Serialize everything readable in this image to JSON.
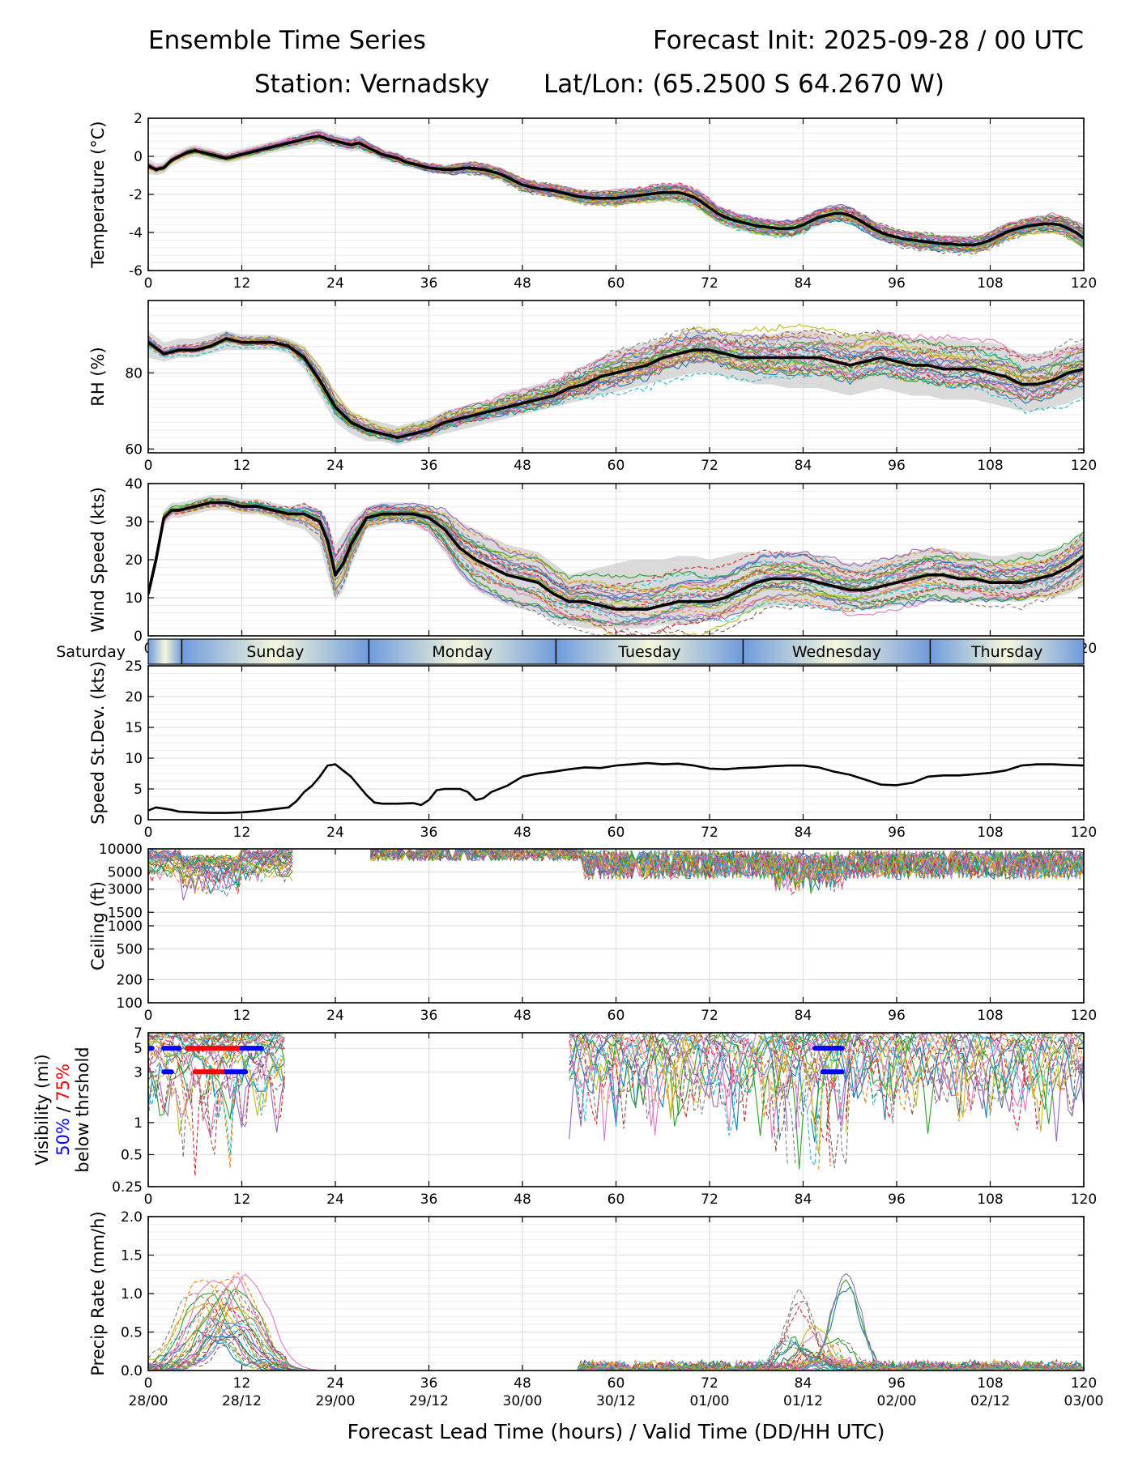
{
  "header": {
    "title_left": "Ensemble Time Series",
    "title_right": "Forecast Init: 2025-09-28 / 00 UTC",
    "station": "Station: Vernadsky",
    "latlon": "Lat/Lon: (65.2500 S 64.2670 W)"
  },
  "colors": {
    "mean": "#000000",
    "spread_fill": "#d3d3d3",
    "members": [
      "#1f77b4",
      "#ff7f0e",
      "#2ca02c",
      "#d62728",
      "#9467bd",
      "#8c564b",
      "#e377c2",
      "#7f7f7f",
      "#bcbd22",
      "#17becf"
    ],
    "day_band_light": "#f5f7dc",
    "day_band_dark": "#6f9bdc",
    "vis_50": "#0000ff",
    "vis_75": "#ff0000"
  },
  "chart_data": [
    {
      "type": "line",
      "id": "temperature",
      "ylabel": "Temperature (°C)",
      "ylim": [
        -6,
        2
      ],
      "yticks": [
        "2",
        "0",
        "-2",
        "-4",
        "-6"
      ],
      "ytick_values": [
        2,
        0,
        -2,
        -4,
        -6
      ],
      "x": [
        0,
        1,
        2,
        3,
        4,
        5,
        6,
        7,
        8,
        9,
        10,
        11,
        12,
        13,
        14,
        15,
        16,
        17,
        18,
        19,
        20,
        21,
        22,
        23,
        24,
        25,
        26,
        27,
        28,
        29,
        30,
        31,
        32,
        33,
        34,
        35,
        36,
        37,
        38,
        39,
        40,
        41,
        42,
        43,
        44,
        45,
        46,
        47,
        48,
        49,
        50,
        51,
        52,
        53,
        54,
        55,
        56,
        57,
        58,
        59,
        60,
        61,
        62,
        63,
        64,
        65,
        66,
        67,
        68,
        69,
        70,
        71,
        72,
        73,
        74,
        75,
        76,
        77,
        78,
        79,
        80,
        81,
        82,
        83,
        84,
        85,
        86,
        87,
        88,
        89,
        90,
        91,
        92,
        93,
        94,
        95,
        96,
        97,
        98,
        99,
        100,
        101,
        102,
        103,
        104,
        105,
        106,
        107,
        108,
        109,
        110,
        111,
        112,
        113,
        114,
        115,
        116,
        117,
        118,
        119,
        120
      ],
      "mean": [
        -0.5,
        -0.7,
        -0.6,
        -0.2,
        0.0,
        0.2,
        0.3,
        0.2,
        0.1,
        0.0,
        -0.1,
        0.0,
        0.1,
        0.2,
        0.3,
        0.4,
        0.5,
        0.6,
        0.7,
        0.8,
        0.9,
        1.0,
        1.05,
        0.9,
        0.8,
        0.7,
        0.6,
        0.7,
        0.5,
        0.3,
        0.1,
        0.0,
        -0.1,
        -0.3,
        -0.4,
        -0.5,
        -0.6,
        -0.65,
        -0.7,
        -0.7,
        -0.65,
        -0.6,
        -0.65,
        -0.7,
        -0.8,
        -0.9,
        -1.1,
        -1.3,
        -1.5,
        -1.6,
        -1.7,
        -1.75,
        -1.8,
        -1.9,
        -2.0,
        -2.1,
        -2.15,
        -2.2,
        -2.2,
        -2.2,
        -2.2,
        -2.15,
        -2.1,
        -2.05,
        -2.0,
        -1.95,
        -1.9,
        -1.9,
        -1.9,
        -2.0,
        -2.15,
        -2.4,
        -2.7,
        -3.0,
        -3.2,
        -3.35,
        -3.45,
        -3.55,
        -3.65,
        -3.7,
        -3.75,
        -3.8,
        -3.8,
        -3.75,
        -3.6,
        -3.4,
        -3.2,
        -3.1,
        -3.0,
        -3.0,
        -3.1,
        -3.3,
        -3.55,
        -3.8,
        -4.0,
        -4.15,
        -4.25,
        -4.35,
        -4.4,
        -4.45,
        -4.5,
        -4.55,
        -4.6,
        -4.6,
        -4.65,
        -4.65,
        -4.65,
        -4.55,
        -4.4,
        -4.2,
        -4.0,
        -3.85,
        -3.75,
        -3.65,
        -3.6,
        -3.55,
        -3.55,
        -3.6,
        -3.8,
        -4.0,
        -4.3
      ],
      "spread_lo": [
        -0.9,
        -1.0,
        -0.9,
        -0.5,
        -0.3,
        -0.1,
        0.0,
        -0.1,
        -0.2,
        -0.3,
        -0.35,
        -0.3,
        -0.2,
        -0.1,
        0.0,
        0.1,
        0.2,
        0.3,
        0.35,
        0.45,
        0.55,
        0.6,
        0.65,
        0.55,
        0.45,
        0.35,
        0.25,
        0.3,
        0.15,
        0.0,
        -0.2,
        -0.3,
        -0.4,
        -0.55,
        -0.65,
        -0.75,
        -0.85,
        -0.9,
        -0.95,
        -1.0,
        -0.95,
        -0.95,
        -1.0,
        -1.05,
        -1.15,
        -1.25,
        -1.45,
        -1.65,
        -1.85,
        -1.95,
        -2.05,
        -2.1,
        -2.15,
        -2.25,
        -2.35,
        -2.45,
        -2.5,
        -2.55,
        -2.6,
        -2.6,
        -2.6,
        -2.55,
        -2.5,
        -2.45,
        -2.4,
        -2.4,
        -2.35,
        -2.35,
        -2.4,
        -2.5,
        -2.65,
        -2.9,
        -3.2,
        -3.45,
        -3.65,
        -3.8,
        -3.9,
        -4.0,
        -4.1,
        -4.15,
        -4.2,
        -4.25,
        -4.25,
        -4.2,
        -4.05,
        -3.85,
        -3.65,
        -3.55,
        -3.45,
        -3.45,
        -3.55,
        -3.75,
        -4.0,
        -4.25,
        -4.45,
        -4.6,
        -4.7,
        -4.8,
        -4.85,
        -4.9,
        -4.95,
        -5.0,
        -5.05,
        -5.05,
        -5.1,
        -5.1,
        -5.1,
        -5.0,
        -4.85,
        -4.65,
        -4.45,
        -4.3,
        -4.2,
        -4.1,
        -4.05,
        -4.0,
        -4.05,
        -4.1,
        -4.35,
        -4.6,
        -4.9
      ],
      "spread_hi": [
        -0.1,
        -0.4,
        -0.3,
        0.1,
        0.3,
        0.5,
        0.6,
        0.5,
        0.4,
        0.3,
        0.15,
        0.3,
        0.4,
        0.5,
        0.6,
        0.7,
        0.8,
        0.9,
        1.05,
        1.15,
        1.25,
        1.4,
        1.45,
        1.25,
        1.15,
        1.05,
        0.95,
        1.1,
        0.85,
        0.6,
        0.4,
        0.3,
        0.2,
        0.0,
        -0.15,
        -0.25,
        -0.35,
        -0.4,
        -0.45,
        -0.4,
        -0.35,
        -0.25,
        -0.3,
        -0.35,
        -0.45,
        -0.55,
        -0.75,
        -0.95,
        -1.15,
        -1.25,
        -1.35,
        -1.4,
        -1.45,
        -1.55,
        -1.65,
        -1.75,
        -1.8,
        -1.85,
        -1.8,
        -1.8,
        -1.8,
        -1.75,
        -1.7,
        -1.65,
        -1.6,
        -1.5,
        -1.45,
        -1.45,
        -1.4,
        -1.5,
        -1.65,
        -1.9,
        -2.2,
        -2.55,
        -2.75,
        -2.9,
        -3.0,
        -3.1,
        -3.2,
        -3.25,
        -3.3,
        -3.35,
        -3.35,
        -3.3,
        -3.15,
        -2.95,
        -2.75,
        -2.65,
        -2.55,
        -2.55,
        -2.65,
        -2.85,
        -3.1,
        -3.35,
        -3.55,
        -3.7,
        -3.8,
        -3.9,
        -3.95,
        -4.0,
        -4.05,
        -4.1,
        -4.15,
        -4.15,
        -4.2,
        -4.2,
        -4.2,
        -4.1,
        -3.95,
        -3.75,
        -3.55,
        -3.4,
        -3.3,
        -3.2,
        -3.15,
        -3.1,
        -3.05,
        -3.1,
        -3.25,
        -3.4,
        -3.7
      ]
    },
    {
      "type": "line",
      "id": "rh",
      "ylabel": "RH (%)",
      "ylim": [
        59,
        99
      ],
      "yticks": [
        "80",
        "60"
      ],
      "ytick_values": [
        80,
        60
      ],
      "x": [
        0,
        2,
        4,
        6,
        8,
        10,
        12,
        14,
        16,
        18,
        20,
        22,
        24,
        26,
        28,
        30,
        32,
        34,
        36,
        38,
        40,
        42,
        44,
        46,
        48,
        50,
        52,
        54,
        56,
        58,
        60,
        62,
        64,
        66,
        68,
        70,
        72,
        74,
        76,
        78,
        80,
        82,
        84,
        86,
        88,
        90,
        92,
        94,
        96,
        98,
        100,
        102,
        104,
        106,
        108,
        110,
        112,
        114,
        116,
        118,
        120
      ],
      "mean": [
        88,
        85,
        86,
        86,
        87,
        89,
        88,
        88,
        88,
        87,
        84,
        78,
        71,
        67,
        65,
        64,
        63,
        64,
        65,
        67,
        68,
        69,
        70,
        71,
        72,
        73,
        74,
        76,
        77,
        79,
        80,
        81,
        82,
        84,
        85,
        86,
        86,
        85,
        84,
        84,
        84,
        84,
        84,
        84,
        83,
        82,
        83,
        84,
        83,
        82,
        82,
        81,
        81,
        81,
        80,
        79,
        77,
        77,
        78,
        80,
        81
      ],
      "spread_lo": [
        84,
        83,
        84,
        84,
        85,
        86,
        86,
        86,
        86,
        85,
        81,
        74,
        67,
        64,
        62,
        62,
        61,
        62,
        63,
        64,
        65,
        66,
        67,
        68,
        69,
        70,
        71,
        72,
        73,
        74,
        75,
        76,
        77,
        78,
        79,
        80,
        80,
        79,
        78,
        77,
        77,
        76,
        76,
        76,
        75,
        74,
        75,
        76,
        75,
        74,
        74,
        73,
        73,
        73,
        72,
        71,
        70,
        70,
        71,
        72,
        74
      ],
      "spread_hi": [
        91,
        88,
        89,
        89,
        90,
        91,
        90,
        90,
        90,
        89,
        87,
        82,
        75,
        70,
        68,
        67,
        66,
        67,
        68,
        70,
        71,
        72,
        73,
        75,
        76,
        77,
        78,
        80,
        82,
        84,
        86,
        87,
        88,
        89,
        90,
        91,
        91,
        90,
        90,
        90,
        90,
        91,
        91,
        91,
        90,
        90,
        90,
        91,
        90,
        89,
        89,
        89,
        89,
        88,
        88,
        87,
        85,
        85,
        86,
        87,
        88
      ]
    },
    {
      "type": "line",
      "id": "wind_speed",
      "ylabel": "Wind Speed (kts)",
      "ylim": [
        0,
        40
      ],
      "yticks": [
        "40",
        "30",
        "20",
        "10",
        "0"
      ],
      "ytick_values": [
        40,
        30,
        20,
        10,
        0
      ],
      "x": [
        0,
        1,
        2,
        3,
        4,
        6,
        8,
        10,
        12,
        14,
        16,
        18,
        20,
        22,
        23,
        24,
        25,
        26,
        28,
        30,
        32,
        34,
        36,
        38,
        40,
        42,
        44,
        46,
        48,
        50,
        52,
        54,
        56,
        58,
        60,
        62,
        64,
        66,
        68,
        70,
        72,
        74,
        76,
        78,
        80,
        82,
        84,
        86,
        88,
        90,
        92,
        94,
        96,
        98,
        100,
        102,
        104,
        106,
        108,
        110,
        112,
        114,
        116,
        118,
        120
      ],
      "mean": [
        11,
        20,
        31,
        33,
        33,
        34,
        35,
        35,
        34,
        34,
        33,
        32,
        32,
        30,
        25,
        16,
        19,
        24,
        31,
        32,
        32,
        32,
        31,
        28,
        23,
        20,
        18,
        16,
        15,
        14,
        11,
        9,
        9,
        8,
        7,
        7,
        7,
        8,
        9,
        9,
        9,
        10,
        12,
        14,
        15,
        15,
        15,
        14,
        13,
        12,
        12,
        13,
        14,
        15,
        16,
        16,
        15,
        15,
        14,
        14,
        14,
        15,
        16,
        18,
        21
      ],
      "spread_lo": [
        10,
        18,
        29,
        31,
        31,
        32,
        33,
        33,
        32,
        32,
        31,
        29,
        28,
        24,
        16,
        9,
        12,
        18,
        28,
        29,
        30,
        29,
        27,
        22,
        16,
        12,
        10,
        8,
        7,
        6,
        4,
        3,
        2,
        2,
        2,
        2,
        2,
        3,
        3,
        3,
        4,
        5,
        6,
        7,
        8,
        8,
        8,
        8,
        7,
        7,
        7,
        7,
        8,
        8,
        9,
        9,
        9,
        9,
        9,
        9,
        9,
        10,
        10,
        11,
        13
      ],
      "spread_hi": [
        13,
        22,
        33,
        35,
        35,
        36,
        37,
        37,
        36,
        36,
        35,
        34,
        35,
        33,
        30,
        24,
        27,
        30,
        34,
        35,
        35,
        35,
        34,
        33,
        30,
        28,
        26,
        24,
        23,
        22,
        19,
        16,
        17,
        18,
        19,
        20,
        20,
        20,
        21,
        21,
        20,
        21,
        22,
        22,
        22,
        22,
        22,
        21,
        20,
        19,
        19,
        20,
        21,
        22,
        23,
        23,
        22,
        22,
        21,
        21,
        22,
        22,
        23,
        24,
        27
      ]
    },
    {
      "type": "line",
      "id": "speed_stdev",
      "ylabel": "Speed St.Dev. (kts)",
      "ylim": [
        0,
        25
      ],
      "yticks": [
        "25",
        "20",
        "15",
        "10",
        "5",
        "0"
      ],
      "ytick_values": [
        25,
        20,
        15,
        10,
        5,
        0
      ],
      "x": [
        0,
        1,
        2,
        3,
        4,
        6,
        8,
        10,
        12,
        14,
        16,
        18,
        19,
        20,
        21,
        22,
        23,
        24,
        25,
        26,
        27,
        28,
        29,
        30,
        32,
        34,
        35,
        36,
        37,
        38,
        40,
        41,
        42,
        43,
        44,
        46,
        48,
        50,
        52,
        54,
        56,
        58,
        60,
        62,
        64,
        66,
        68,
        70,
        72,
        74,
        76,
        78,
        80,
        82,
        84,
        86,
        88,
        90,
        92,
        94,
        96,
        98,
        100,
        102,
        104,
        106,
        108,
        110,
        112,
        114,
        116,
        118,
        120
      ],
      "values": [
        1.5,
        2.0,
        1.8,
        1.6,
        1.3,
        1.2,
        1.1,
        1.1,
        1.2,
        1.4,
        1.7,
        2.0,
        3.0,
        4.5,
        5.5,
        7.0,
        8.8,
        9.0,
        8.0,
        7.0,
        5.5,
        4.0,
        2.8,
        2.6,
        2.6,
        2.7,
        2.4,
        3.2,
        4.8,
        5.0,
        5.0,
        4.5,
        3.2,
        3.5,
        4.5,
        5.5,
        7.0,
        7.5,
        7.8,
        8.2,
        8.5,
        8.4,
        8.8,
        9.0,
        9.2,
        9.0,
        9.1,
        8.8,
        8.3,
        8.2,
        8.4,
        8.5,
        8.7,
        8.8,
        8.8,
        8.5,
        7.8,
        7.3,
        6.5,
        5.7,
        5.6,
        6.0,
        7.0,
        7.2,
        7.2,
        7.4,
        7.6,
        8.0,
        8.8,
        9.0,
        9.0,
        8.9,
        8.8
      ]
    },
    {
      "type": "line",
      "id": "ceiling",
      "ylabel": "Ceiling (ft)",
      "scale": "log",
      "ylim": [
        100,
        10000
      ],
      "yticks": [
        "10000",
        "5000",
        "3000",
        "1500",
        "1000",
        "500",
        "200",
        "100"
      ],
      "ytick_values": [
        10000,
        5000,
        3000,
        1500,
        1000,
        500,
        200,
        100
      ]
    },
    {
      "type": "line",
      "id": "visibility",
      "ylabel": "Visibility (mi)",
      "ylabel_50": "50%",
      "ylabel_sep": " / ",
      "ylabel_75": "75%",
      "ylabel_below": "below thrshold",
      "scale": "log",
      "ylim": [
        0.25,
        7
      ],
      "yticks": [
        "7",
        "5",
        "3",
        "1",
        "0.5",
        "0.25"
      ],
      "ytick_values": [
        7,
        5,
        3,
        1,
        0.5,
        0.25
      ],
      "exceedance_segments": [
        {
          "level": 5,
          "x0": 0,
          "x1": 0.5,
          "color": "blue"
        },
        {
          "level": 5,
          "x0": 2,
          "x1": 4,
          "color": "blue"
        },
        {
          "level": 5,
          "x0": 5,
          "x1": 12,
          "color": "red"
        },
        {
          "level": 5,
          "x0": 12,
          "x1": 14.5,
          "color": "blue"
        },
        {
          "level": 3,
          "x0": 2,
          "x1": 3,
          "color": "blue"
        },
        {
          "level": 3,
          "x0": 6,
          "x1": 10,
          "color": "red"
        },
        {
          "level": 3,
          "x0": 10,
          "x1": 12.5,
          "color": "blue"
        },
        {
          "level": 5,
          "x0": 85.5,
          "x1": 89,
          "color": "blue"
        },
        {
          "level": 3,
          "x0": 86.5,
          "x1": 89,
          "color": "blue"
        }
      ]
    },
    {
      "type": "line",
      "id": "precip",
      "ylabel": "Precip Rate (mm/h)",
      "ylim": [
        0,
        2
      ],
      "yticks": [
        "2.0",
        "1.5",
        "1.0",
        "0.5",
        "0.0"
      ],
      "ytick_values": [
        2.0,
        1.5,
        1.0,
        0.5,
        0.0
      ]
    }
  ],
  "xaxis": {
    "ticks": [
      "0",
      "12",
      "24",
      "36",
      "48",
      "60",
      "72",
      "84",
      "96",
      "108",
      "120"
    ],
    "tick_values": [
      0,
      12,
      24,
      36,
      48,
      60,
      72,
      84,
      96,
      108,
      120
    ],
    "valid_times": [
      "28/00",
      "28/12",
      "29/00",
      "29/12",
      "30/00",
      "30/12",
      "01/00",
      "01/12",
      "02/00",
      "02/12",
      "03/00"
    ],
    "label": "Forecast Lead Time (hours) / Valid Time (DD/HH UTC)",
    "xlim": [
      0,
      120
    ]
  },
  "day_band": {
    "labels": [
      "Saturday",
      "Sunday",
      "Monday",
      "Tuesday",
      "Wednesday",
      "Thursday"
    ],
    "boundaries": [
      4.3,
      28.3,
      52.3,
      76.3,
      100.3
    ]
  }
}
